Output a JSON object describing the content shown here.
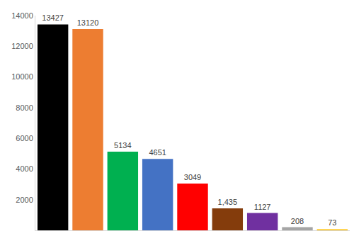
{
  "chart_data": {
    "type": "bar",
    "categories": [
      null,
      null,
      null,
      null,
      null,
      null,
      null,
      null,
      null
    ],
    "values": [
      13427,
      13120,
      5134,
      4651,
      3049,
      1435,
      1127,
      208,
      73
    ],
    "value_labels": [
      "13427",
      "13120",
      "5134",
      "4651",
      "3049",
      "1,435",
      "1127",
      "208",
      "73"
    ],
    "colors": [
      "#000000",
      "#ed7d31",
      "#00b050",
      "#4472c4",
      "#ff0000",
      "#843c0c",
      "#7030a0",
      "#a5a5a5",
      "#ffc000"
    ],
    "ylim": [
      0,
      14000
    ],
    "yticks": [
      2000,
      4000,
      6000,
      8000,
      10000,
      12000,
      14000
    ],
    "grid": false,
    "data_labels": true,
    "tick_labels": "y"
  }
}
